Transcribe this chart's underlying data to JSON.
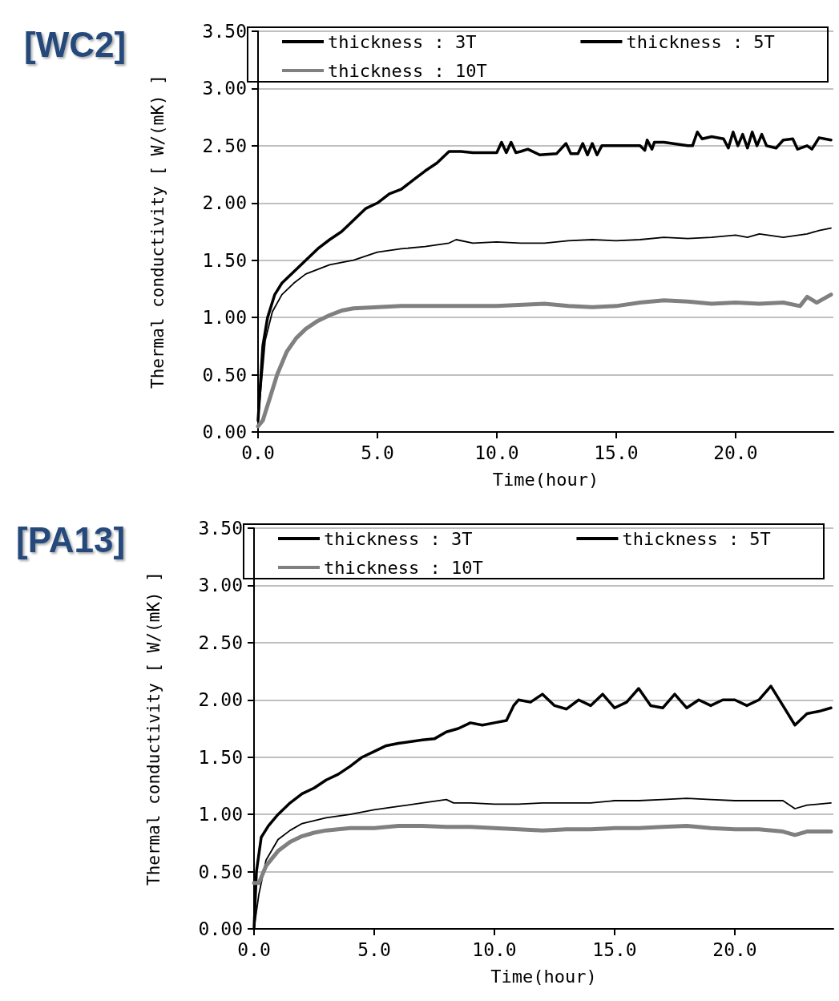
{
  "chart_data": [
    {
      "type": "line",
      "title": "[WC2]",
      "xlabel": "Time(hour)",
      "ylabel": "Thermal conductivity [ W/(mK) ]",
      "legend": "top",
      "grid": "y",
      "marker": "none",
      "xlim": [
        0,
        24.1
      ],
      "xticks": [
        {
          "value": 0,
          "label": "0.0"
        },
        {
          "value": 5,
          "label": "5.0"
        },
        {
          "value": 10,
          "label": "10.0"
        },
        {
          "value": 15,
          "label": "15.0"
        },
        {
          "value": 20,
          "label": "20.0"
        }
      ],
      "ylim": [
        0,
        3.5
      ],
      "yticks": [
        {
          "value": 0,
          "label": "0.00"
        },
        {
          "value": 0.5,
          "label": "0.50"
        },
        {
          "value": 1,
          "label": "1.00"
        },
        {
          "value": 1.5,
          "label": "1.50"
        },
        {
          "value": 2,
          "label": "2.00"
        },
        {
          "value": 2.5,
          "label": "2.50"
        },
        {
          "value": 3,
          "label": "3.00"
        },
        {
          "value": 3.5,
          "label": "3.50"
        }
      ],
      "series": [
        {
          "name": "thickness : 3T",
          "color": "#000000",
          "x": [
            0,
            0.2,
            0.4,
            0.7,
            1,
            1.5,
            2,
            2.5,
            3,
            3.5,
            4,
            4.5,
            5,
            5.5,
            6,
            6.5,
            7,
            7.5,
            8,
            8.5,
            9,
            10,
            10.2,
            10.4,
            10.6,
            10.8,
            11,
            11.3,
            11.8,
            12.5,
            12.9,
            13.1,
            13.4,
            13.6,
            13.8,
            14,
            14.2,
            14.4,
            15,
            16,
            16.2,
            16.3,
            16.5,
            16.6,
            17,
            18,
            18.2,
            18.4,
            18.6,
            19,
            19.5,
            19.7,
            19.9,
            20.1,
            20.3,
            20.5,
            20.7,
            20.9,
            21.1,
            21.3,
            21.7,
            22,
            22.4,
            22.6,
            23,
            23.2,
            23.5,
            24
          ],
          "values": [
            0.1,
            0.75,
            1,
            1.2,
            1.3,
            1.4,
            1.5,
            1.6,
            1.68,
            1.75,
            1.85,
            1.95,
            2,
            2.08,
            2.12,
            2.2,
            2.28,
            2.35,
            2.45,
            2.45,
            2.44,
            2.44,
            2.53,
            2.44,
            2.53,
            2.44,
            2.45,
            2.47,
            2.42,
            2.43,
            2.52,
            2.43,
            2.43,
            2.52,
            2.42,
            2.52,
            2.42,
            2.5,
            2.5,
            2.5,
            2.46,
            2.55,
            2.47,
            2.53,
            2.53,
            2.5,
            2.5,
            2.62,
            2.56,
            2.58,
            2.56,
            2.48,
            2.62,
            2.5,
            2.6,
            2.48,
            2.62,
            2.5,
            2.6,
            2.5,
            2.48,
            2.55,
            2.56,
            2.47,
            2.5,
            2.47,
            2.57,
            2.55
          ]
        },
        {
          "name": "thickness : 5T",
          "color": "#000000",
          "x": [
            0,
            0.3,
            0.6,
            1,
            1.5,
            2,
            3,
            4,
            5,
            6,
            7,
            8,
            8.3,
            9,
            10,
            11,
            12,
            13,
            14,
            15,
            16,
            17,
            18,
            19,
            20,
            20.5,
            21,
            22,
            23,
            23.5,
            24
          ],
          "values": [
            0.1,
            0.8,
            1.05,
            1.2,
            1.3,
            1.38,
            1.46,
            1.5,
            1.57,
            1.6,
            1.62,
            1.65,
            1.68,
            1.65,
            1.66,
            1.65,
            1.65,
            1.67,
            1.68,
            1.67,
            1.68,
            1.7,
            1.69,
            1.7,
            1.72,
            1.7,
            1.73,
            1.7,
            1.73,
            1.76,
            1.78
          ]
        },
        {
          "name": "thickness : 10T",
          "color": "#808080",
          "x": [
            0,
            0.2,
            0.5,
            0.8,
            1.2,
            1.6,
            2,
            2.5,
            3,
            3.5,
            4,
            5,
            6,
            8,
            10,
            12,
            13,
            14,
            15,
            16,
            17,
            18,
            19,
            20,
            21,
            22,
            22.7,
            23,
            23.4,
            24
          ],
          "values": [
            0.05,
            0.1,
            0.3,
            0.5,
            0.7,
            0.82,
            0.9,
            0.97,
            1.02,
            1.06,
            1.08,
            1.09,
            1.1,
            1.1,
            1.1,
            1.12,
            1.1,
            1.09,
            1.1,
            1.13,
            1.15,
            1.14,
            1.12,
            1.13,
            1.12,
            1.13,
            1.1,
            1.18,
            1.13,
            1.2
          ]
        }
      ]
    },
    {
      "type": "line",
      "title": "[PA13]",
      "xlabel": "Time(hour)",
      "ylabel": "Thermal conductivity [ W/(mK) ]",
      "legend": "top",
      "grid": "y",
      "marker": "none",
      "xlim": [
        0,
        24.1
      ],
      "xticks": [
        {
          "value": 0,
          "label": "0.0"
        },
        {
          "value": 5,
          "label": "5.0"
        },
        {
          "value": 10,
          "label": "10.0"
        },
        {
          "value": 15,
          "label": "15.0"
        },
        {
          "value": 20,
          "label": "20.0"
        }
      ],
      "ylim": [
        0,
        3.5
      ],
      "yticks": [
        {
          "value": 0,
          "label": "0.00"
        },
        {
          "value": 0.5,
          "label": "0.50"
        },
        {
          "value": 1,
          "label": "1.00"
        },
        {
          "value": 1.5,
          "label": "1.50"
        },
        {
          "value": 2,
          "label": "2.00"
        },
        {
          "value": 2.5,
          "label": "2.50"
        },
        {
          "value": 3,
          "label": "3.00"
        },
        {
          "value": 3.5,
          "label": "3.50"
        }
      ],
      "series": [
        {
          "name": "thickness : 3T",
          "color": "#000000",
          "x": [
            0,
            0.1,
            0.3,
            0.6,
            1,
            1.5,
            2,
            2.5,
            3,
            3.5,
            4,
            4.5,
            5,
            5.5,
            6,
            7,
            7.5,
            8,
            8.5,
            9,
            9.5,
            10,
            10.5,
            10.8,
            11,
            11.5,
            12,
            12.5,
            13,
            13.5,
            14,
            14.5,
            15,
            15.5,
            16,
            16.5,
            17,
            17.5,
            18,
            18.5,
            19,
            19.5,
            20,
            20.5,
            21,
            21.5,
            22,
            22.5,
            23,
            23.5,
            24
          ],
          "values": [
            0,
            0.5,
            0.8,
            0.9,
            1,
            1.1,
            1.18,
            1.23,
            1.3,
            1.35,
            1.42,
            1.5,
            1.55,
            1.6,
            1.62,
            1.65,
            1.66,
            1.72,
            1.75,
            1.8,
            1.78,
            1.8,
            1.82,
            1.95,
            2,
            1.98,
            2.05,
            1.95,
            1.92,
            2,
            1.95,
            2.05,
            1.93,
            1.98,
            2.1,
            1.95,
            1.93,
            2.05,
            1.93,
            2,
            1.95,
            2,
            2,
            1.95,
            2,
            2.12,
            1.95,
            1.78,
            1.88,
            1.9,
            1.93
          ]
        },
        {
          "name": "thickness : 5T",
          "color": "#000000",
          "x": [
            0,
            0.2,
            0.5,
            1,
            1.5,
            2,
            3,
            4,
            5,
            6,
            7,
            8,
            8.3,
            9,
            10,
            11,
            12,
            13,
            14,
            15,
            16,
            17,
            18,
            19,
            20,
            21,
            22,
            22.5,
            23,
            24
          ],
          "values": [
            0,
            0.3,
            0.6,
            0.78,
            0.86,
            0.92,
            0.97,
            1,
            1.04,
            1.07,
            1.1,
            1.13,
            1.1,
            1.1,
            1.09,
            1.09,
            1.1,
            1.1,
            1.1,
            1.12,
            1.12,
            1.13,
            1.14,
            1.13,
            1.12,
            1.12,
            1.12,
            1.05,
            1.08,
            1.1
          ]
        },
        {
          "name": "thickness : 10T",
          "color": "#808080",
          "x": [
            0,
            0.2,
            0.5,
            1,
            1.5,
            2,
            2.5,
            3,
            4,
            5,
            6,
            7,
            8,
            9,
            10,
            11,
            12,
            13,
            14,
            15,
            16,
            17,
            18,
            19,
            20,
            21,
            22,
            22.5,
            23,
            24
          ],
          "values": [
            0.4,
            0.4,
            0.55,
            0.68,
            0.76,
            0.81,
            0.84,
            0.86,
            0.88,
            0.88,
            0.9,
            0.9,
            0.89,
            0.89,
            0.88,
            0.87,
            0.86,
            0.87,
            0.87,
            0.88,
            0.88,
            0.89,
            0.9,
            0.88,
            0.87,
            0.87,
            0.85,
            0.82,
            0.85,
            0.85
          ]
        }
      ]
    }
  ]
}
